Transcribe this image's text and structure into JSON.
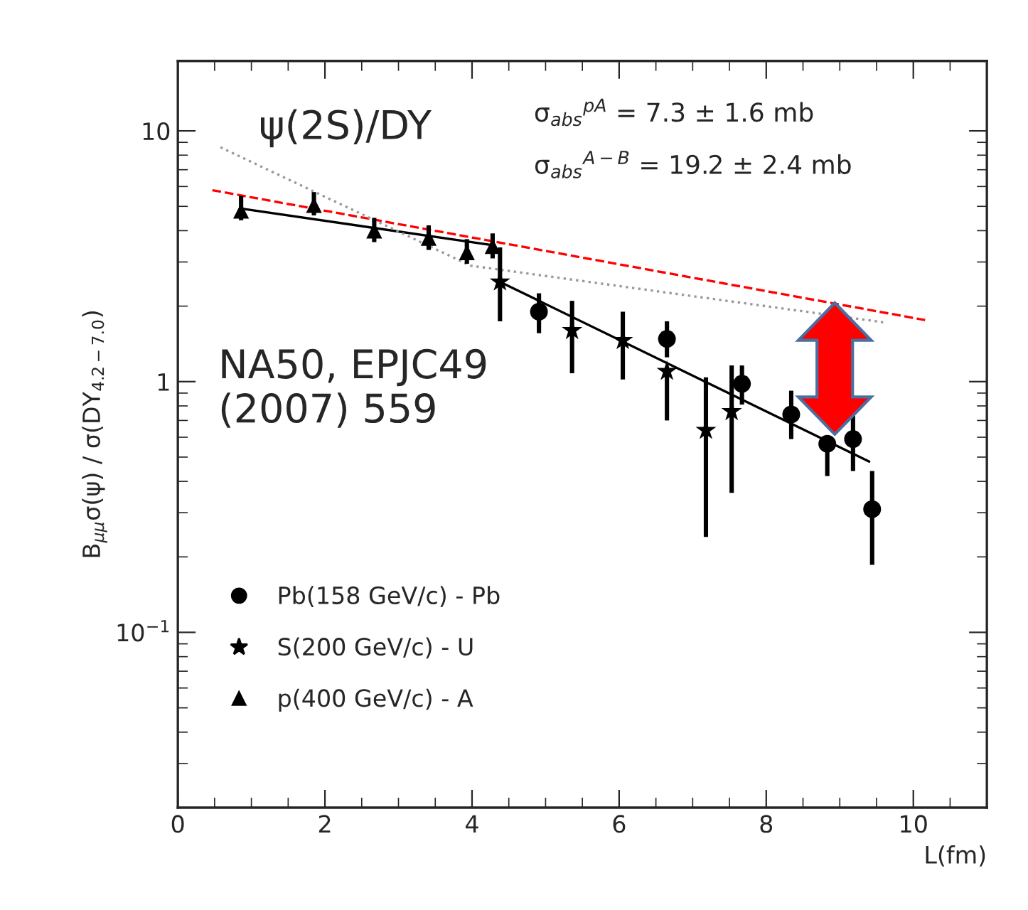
{
  "chart_data": {
    "type": "scatter",
    "xlabel": "L(fm)",
    "ylabel": "B$_{μμ}$σ(ψ) / σ(DY$_{4.2−7.0}$)",
    "log": "y",
    "xlim": [
      0,
      11
    ],
    "ylim": [
      0.02,
      19
    ],
    "xticks": [
      0,
      2,
      4,
      6,
      8,
      10
    ],
    "yticks": [
      {
        "value": 0.1,
        "label": "10$^{−1}$"
      },
      {
        "value": 1,
        "label": "1"
      },
      {
        "value": 10,
        "label": "10"
      }
    ],
    "legend": "lower left",
    "grid": false,
    "series": [
      {
        "name": "Pb(158 GeV/c) - Pb",
        "marker": "circle",
        "color": "#000000",
        "x": [
          4.91,
          6.65,
          7.67,
          8.34,
          8.83,
          9.18,
          9.44
        ],
        "values": [
          1.9,
          1.48,
          0.98,
          0.74,
          0.565,
          0.59,
          0.31
        ],
        "errors": [
          [
            1.56,
            2.25
          ],
          [
            1.25,
            1.74
          ],
          [
            0.81,
            1.16
          ],
          [
            0.59,
            0.92
          ],
          [
            0.42,
            0.565
          ],
          [
            0.44,
            0.74
          ],
          [
            0.186,
            0.44
          ]
        ]
      },
      {
        "name": "S(200 GeV/c) - U",
        "marker": "star",
        "color": "#000000",
        "x": [
          4.38,
          5.36,
          6.05,
          6.65,
          7.18,
          7.53
        ],
        "values": [
          2.5,
          1.6,
          1.46,
          1.1,
          0.64,
          0.76
        ],
        "errors": [
          [
            1.74,
            3.43
          ],
          [
            1.08,
            2.1
          ],
          [
            1.02,
            1.9
          ],
          [
            0.7,
            1.1
          ],
          [
            0.24,
            1.04
          ],
          [
            0.36,
            1.16
          ]
        ]
      },
      {
        "name": "p(400 GeV/c) - A",
        "marker": "triangle",
        "color": "#000000",
        "x": [
          0.86,
          1.85,
          2.67,
          3.41,
          3.93,
          4.28
        ],
        "values": [
          4.8,
          5.06,
          4.0,
          3.74,
          3.28,
          3.47
        ],
        "errors": [
          [
            4.4,
            5.5
          ],
          [
            4.6,
            5.7
          ],
          [
            3.6,
            4.5
          ],
          [
            3.35,
            4.2
          ],
          [
            2.95,
            3.7
          ],
          [
            3.1,
            3.9
          ]
        ]
      },
      {
        "type": "line",
        "line_style": "solid",
        "color": "#000000",
        "x": [
          0.86,
          4.28
        ],
        "values": [
          4.9,
          3.5
        ]
      },
      {
        "type": "line",
        "line_style": "solid",
        "color": "#000000",
        "x": [
          4.38,
          9.4
        ],
        "values": [
          2.5,
          0.48
        ]
      },
      {
        "type": "line",
        "line_style": "dashed",
        "color": "#ff0000",
        "x": [
          0.47,
          10.16
        ],
        "values": [
          5.8,
          1.76
        ]
      },
      {
        "type": "line",
        "line_style": "dotted",
        "color": "#999999",
        "x": [
          0.58,
          3.98,
          9.62
        ],
        "values": [
          8.6,
          2.9,
          1.72
        ]
      }
    ],
    "annotations": [
      "ψ(2S)/DY",
      "σ$_{abs}$$^{pA}$ = 7.3 ± 1.6 mb",
      "σ$_{abs}$$^{A−B}$ = 19.2 ± 2.4 mb",
      "NA50, EPJC49\n(2007) 559"
    ]
  }
}
